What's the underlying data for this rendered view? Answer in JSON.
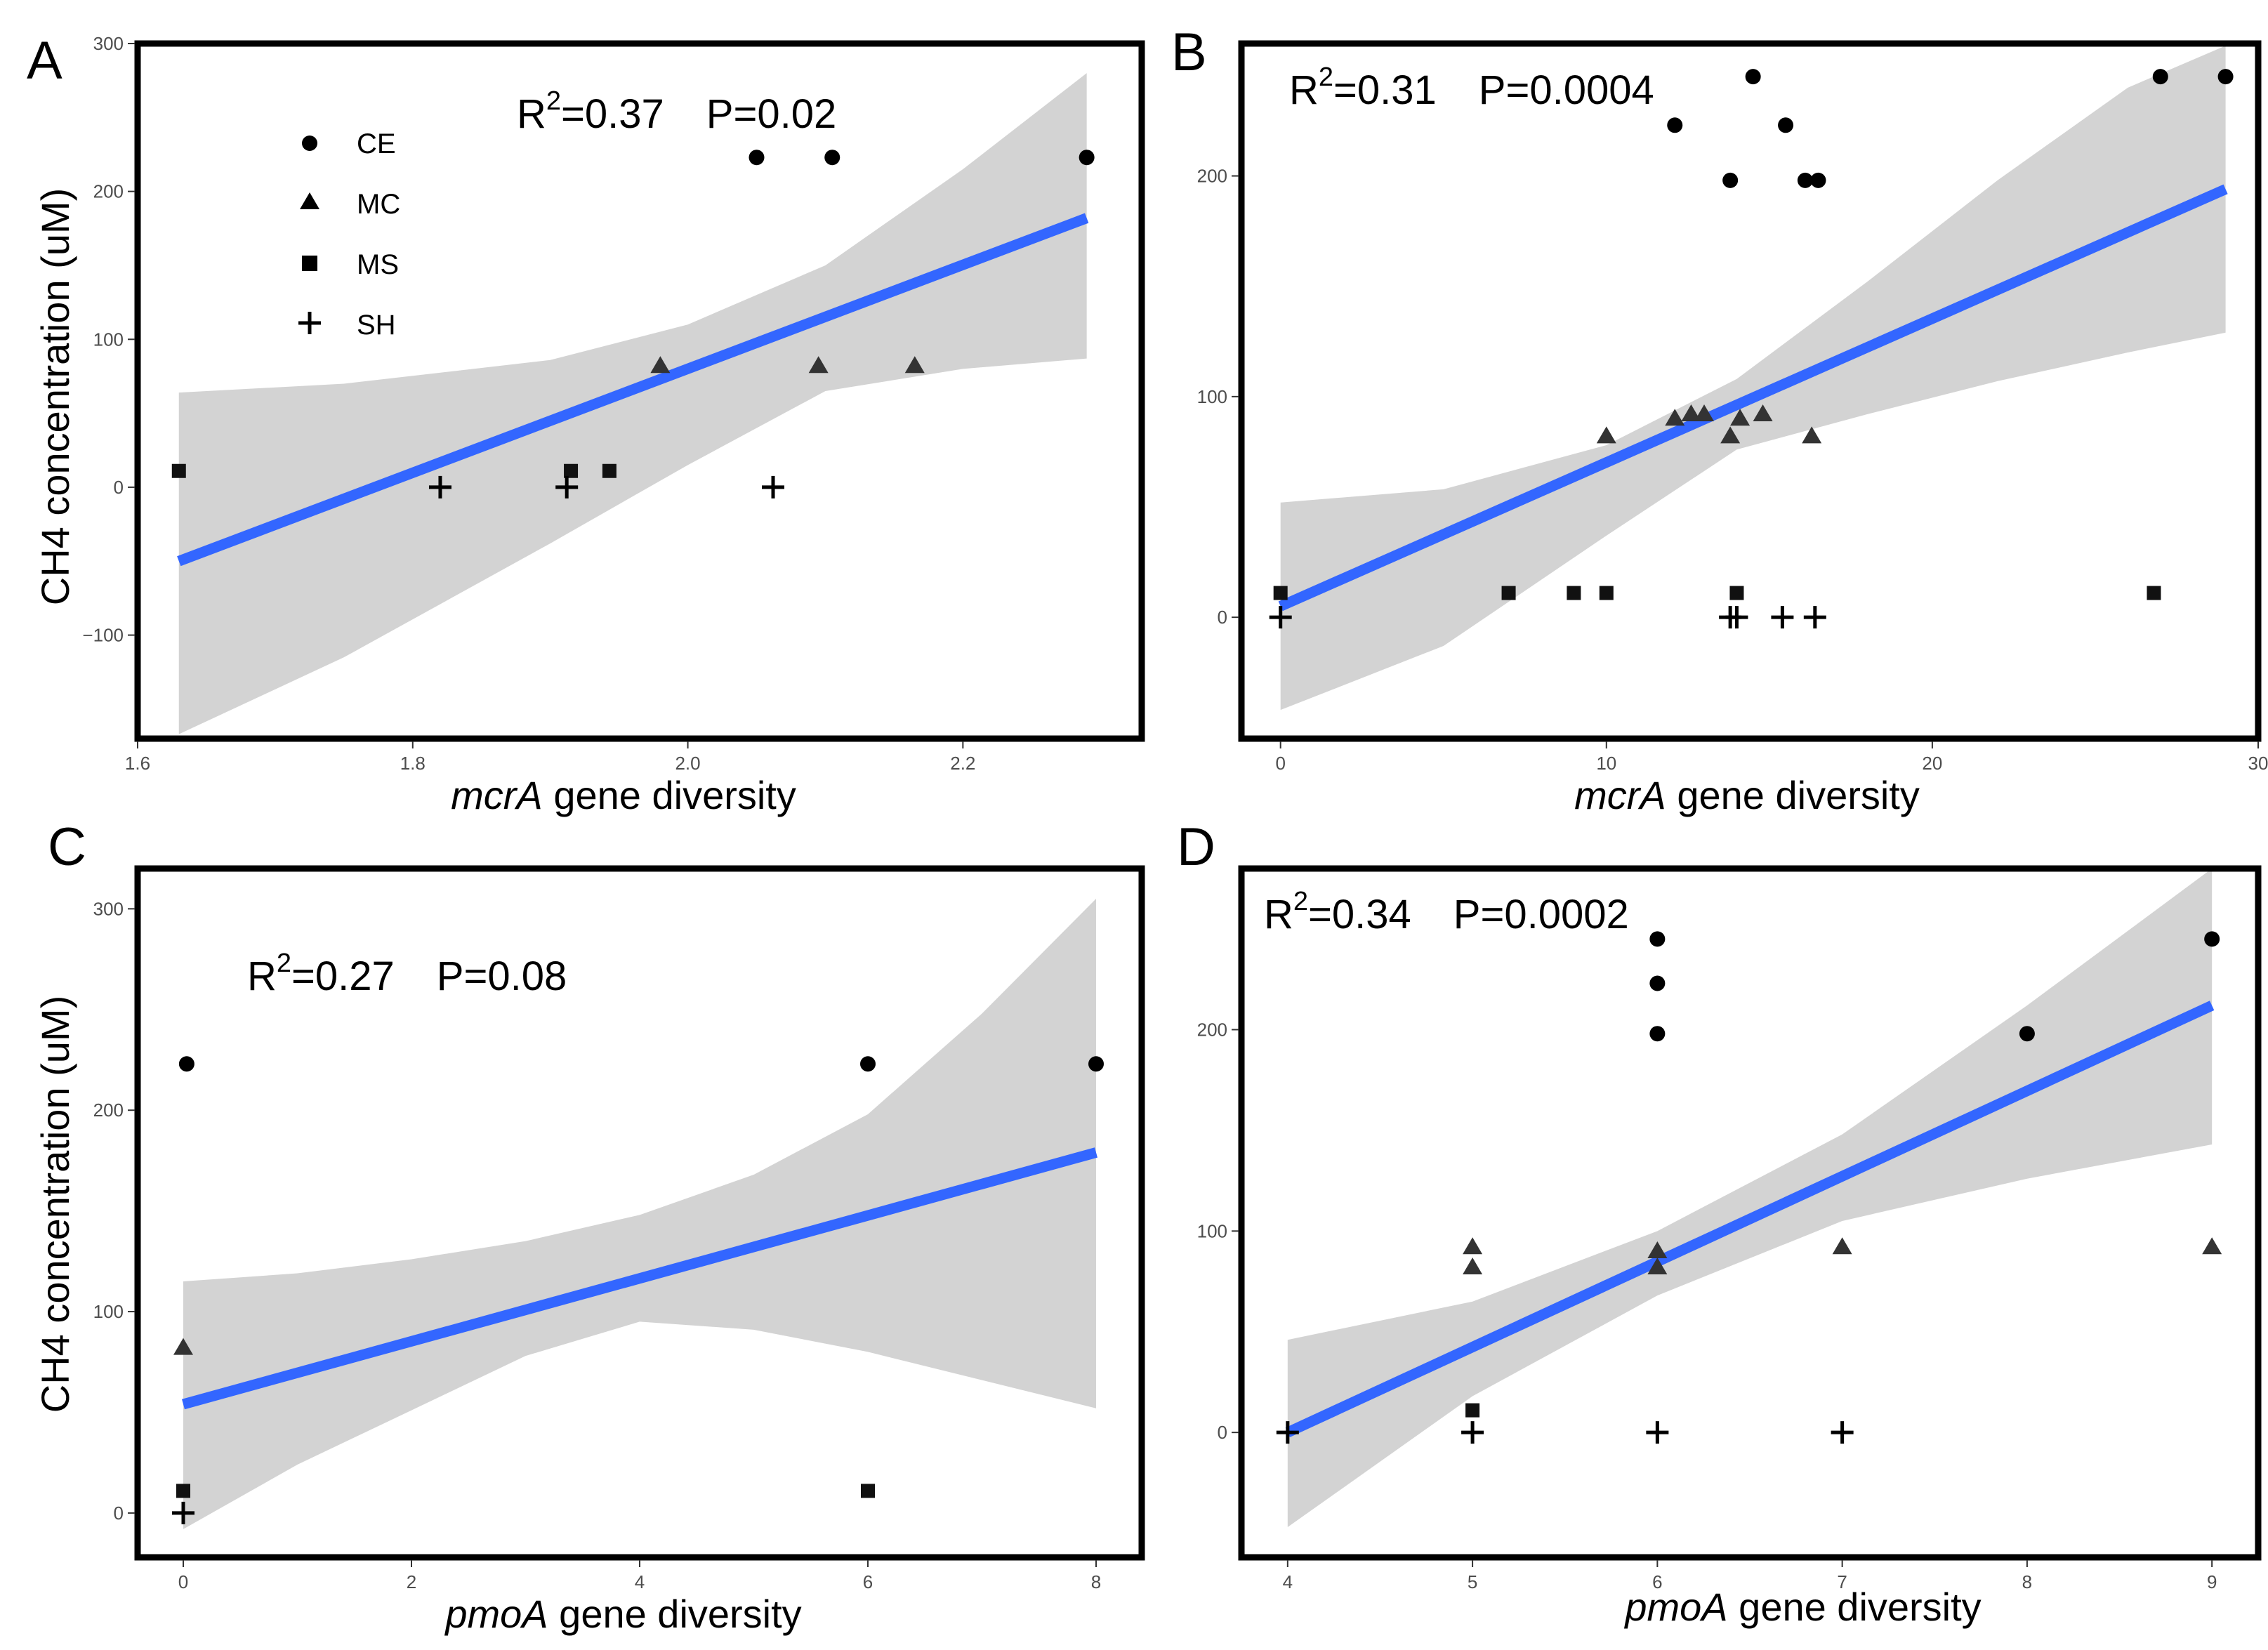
{
  "figure": {
    "ylabel": "CH4 concentration (uM)",
    "xlabel_suffix": " gene diversity",
    "legend": [
      {
        "label": "CE",
        "shape": "circle"
      },
      {
        "label": "MC",
        "shape": "triangle"
      },
      {
        "label": "MS",
        "shape": "square"
      },
      {
        "label": "SH",
        "shape": "plus"
      }
    ]
  },
  "chart_data": [
    {
      "panel": "A",
      "type": "scatter",
      "xlabel_gene": "mcrA",
      "stats": {
        "r2_value": "=0.37",
        "p_text": "P=0.02"
      },
      "xlim": [
        1.6,
        2.33
      ],
      "ylim": [
        -170,
        300
      ],
      "xticks": [
        1.6,
        1.8,
        2.0,
        2.2
      ],
      "xtick_labels": [
        "1.6",
        "1.8",
        "2.0",
        "2.2"
      ],
      "yticks": [
        -100,
        0,
        100,
        200,
        300
      ],
      "ytick_labels": [
        "−100",
        "0",
        "100",
        "200",
        "300"
      ],
      "fit": {
        "x": [
          1.63,
          2.29
        ],
        "y": [
          -50,
          182
        ]
      },
      "ci": {
        "x": [
          1.63,
          1.75,
          1.9,
          2.0,
          2.1,
          2.2,
          2.29
        ],
        "upper": [
          64,
          70,
          86,
          110,
          150,
          215,
          280
        ],
        "lower": [
          -167,
          -115,
          -38,
          15,
          65,
          80,
          87
        ]
      },
      "series": [
        {
          "name": "CE",
          "shape": "circle",
          "x": [
            2.05,
            2.105,
            2.29
          ],
          "y": [
            223,
            223,
            223
          ]
        },
        {
          "name": "MC",
          "shape": "triangle",
          "x": [
            1.98,
            2.095,
            2.165
          ],
          "y": [
            82,
            82,
            82
          ]
        },
        {
          "name": "MS",
          "shape": "square",
          "x": [
            1.63,
            1.915,
            1.943
          ],
          "y": [
            11,
            11,
            11
          ]
        },
        {
          "name": "SH",
          "shape": "plus",
          "x": [
            1.82,
            1.912,
            2.062
          ],
          "y": [
            0,
            0,
            0
          ]
        }
      ]
    },
    {
      "panel": "B",
      "type": "scatter",
      "xlabel_gene": "mcrA",
      "stats": {
        "r2_value": "=0.31",
        "p_text": "P=0.0004"
      },
      "xlim": [
        -1.2,
        30
      ],
      "ylim": [
        -55,
        260
      ],
      "xticks": [
        0,
        10,
        20,
        30
      ],
      "xtick_labels": [
        "0",
        "10",
        "20",
        "30"
      ],
      "yticks": [
        0,
        100,
        200
      ],
      "ytick_labels": [
        "0",
        "100",
        "200"
      ],
      "fit": {
        "x": [
          0,
          29
        ],
        "y": [
          5,
          194
        ]
      },
      "ci": {
        "x": [
          0,
          5,
          10,
          14,
          18,
          22,
          26,
          29
        ],
        "upper": [
          52,
          58,
          78,
          108,
          152,
          198,
          240,
          259
        ],
        "lower": [
          -42,
          -13,
          37,
          76,
          92,
          107,
          120,
          129
        ]
      },
      "series": [
        {
          "name": "CE",
          "shape": "circle",
          "x": [
            12.1,
            13.8,
            14.5,
            15.5,
            16.1,
            16.5,
            27.0,
            29.0
          ],
          "y": [
            223,
            198,
            245,
            223,
            198,
            198,
            245,
            245
          ]
        },
        {
          "name": "MC",
          "shape": "triangle",
          "x": [
            10.0,
            12.1,
            12.6,
            13.0,
            13.8,
            14.1,
            14.8,
            16.3
          ],
          "y": [
            82,
            90,
            92,
            92,
            82,
            90,
            92,
            82
          ]
        },
        {
          "name": "MS",
          "shape": "square",
          "x": [
            0,
            7.0,
            9.0,
            10.0,
            14.0,
            26.8
          ],
          "y": [
            11,
            11,
            11,
            11,
            11,
            11
          ]
        },
        {
          "name": "SH",
          "shape": "plus",
          "x": [
            0,
            13.8,
            14.0,
            15.4,
            16.4
          ],
          "y": [
            0,
            0,
            0,
            0,
            0
          ]
        }
      ]
    },
    {
      "panel": "C",
      "type": "scatter",
      "xlabel_gene": "pmoA",
      "stats": {
        "r2_value": "=0.27",
        "p_text": "P=0.08"
      },
      "xlim": [
        -0.4,
        8.4
      ],
      "ylim": [
        -22,
        320
      ],
      "xticks": [
        0,
        2,
        4,
        6,
        8
      ],
      "xtick_labels": [
        "0",
        "2",
        "4",
        "6",
        "8"
      ],
      "yticks": [
        0,
        100,
        200,
        300
      ],
      "ytick_labels": [
        "0",
        "100",
        "200",
        "300"
      ],
      "fit": {
        "x": [
          0,
          8
        ],
        "y": [
          54,
          179
        ]
      },
      "ci": {
        "x": [
          0,
          1,
          2,
          3,
          4,
          5,
          6,
          7,
          8
        ],
        "upper": [
          115,
          119,
          126,
          135,
          148,
          168,
          198,
          248,
          305
        ],
        "lower": [
          -8,
          24,
          51,
          78,
          95,
          91,
          80,
          66,
          52
        ]
      },
      "series": [
        {
          "name": "CE",
          "shape": "circle",
          "x": [
            0.03,
            6.0,
            8.0
          ],
          "y": [
            223,
            223,
            223
          ]
        },
        {
          "name": "MC",
          "shape": "triangle",
          "x": [
            0
          ],
          "y": [
            82
          ]
        },
        {
          "name": "MS",
          "shape": "square",
          "x": [
            0,
            6.0
          ],
          "y": [
            11,
            11
          ]
        },
        {
          "name": "SH",
          "shape": "plus",
          "x": [
            0
          ],
          "y": [
            0
          ]
        }
      ]
    },
    {
      "panel": "D",
      "type": "scatter",
      "xlabel_gene": "pmoA",
      "stats": {
        "r2_value": "=0.34",
        "p_text": "P=0.0002"
      },
      "xlim": [
        3.75,
        9.25
      ],
      "ylim": [
        -62,
        280
      ],
      "xticks": [
        4,
        5,
        6,
        7,
        8,
        9
      ],
      "xtick_labels": [
        "4",
        "5",
        "6",
        "7",
        "8",
        "9"
      ],
      "yticks": [
        0,
        100,
        200
      ],
      "ytick_labels": [
        "0",
        "100",
        "200"
      ],
      "fit": {
        "x": [
          4,
          9
        ],
        "y": [
          0,
          212
        ]
      },
      "ci": {
        "x": [
          4,
          5,
          6,
          7,
          8,
          9
        ],
        "upper": [
          46,
          65,
          100,
          148,
          212,
          280
        ],
        "lower": [
          -47,
          18,
          68,
          105,
          126,
          143
        ]
      },
      "series": [
        {
          "name": "CE",
          "shape": "circle",
          "x": [
            6,
            6,
            6,
            8,
            9
          ],
          "y": [
            245,
            223,
            198,
            198,
            245
          ]
        },
        {
          "name": "MC",
          "shape": "triangle",
          "x": [
            5,
            5,
            6,
            6,
            7,
            9
          ],
          "y": [
            92,
            82,
            90,
            82,
            92,
            92
          ]
        },
        {
          "name": "MS",
          "shape": "square",
          "x": [
            5
          ],
          "y": [
            11
          ]
        },
        {
          "name": "SH",
          "shape": "plus",
          "x": [
            4,
            5,
            6,
            7
          ],
          "y": [
            0,
            0,
            0,
            0
          ]
        }
      ]
    }
  ]
}
